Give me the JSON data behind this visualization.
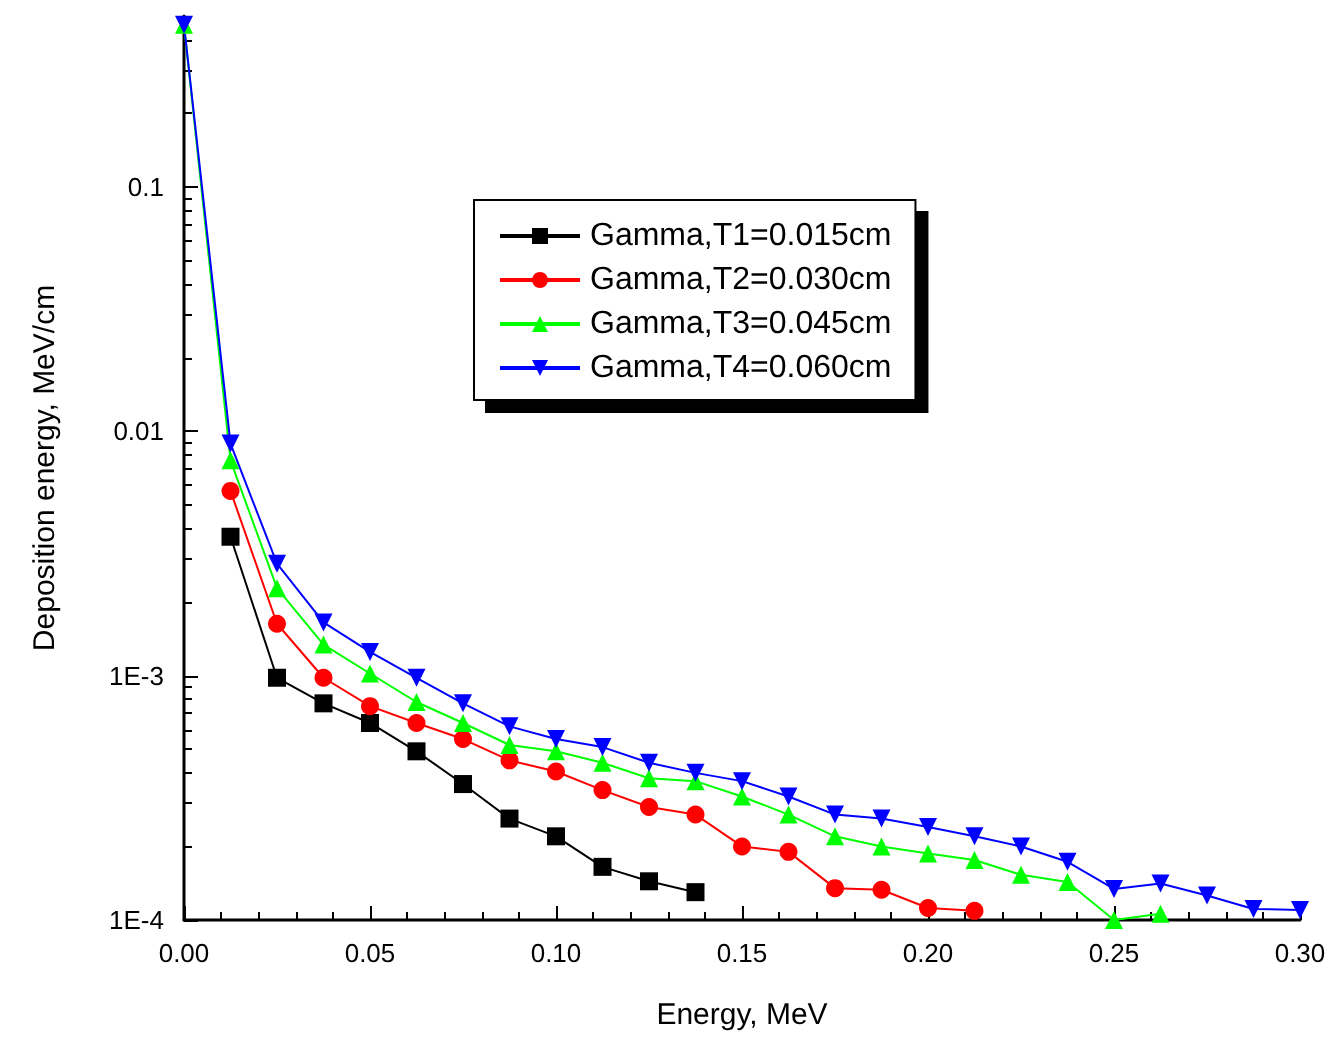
{
  "chart_data": {
    "type": "line",
    "xlabel": "Energy, MeV",
    "ylabel": "Deposition energy, MeV/cm",
    "log": "y",
    "x": [
      0,
      0.0125,
      0.025,
      0.0375,
      0.05,
      0.0625,
      0.075,
      0.0875,
      0.1,
      0.1125,
      0.125,
      0.1375,
      0.15,
      0.1625,
      0.175,
      0.1875,
      0.2,
      0.2125,
      0.225,
      0.2375,
      0.25,
      0.2625,
      0.275,
      0.2875,
      0.3
    ],
    "series": [
      {
        "name": "Gamma,T1=0.015cm",
        "color": "#000000",
        "marker": "square",
        "values": [
          null,
          0.0037,
          0.00098,
          0.00077,
          0.00064,
          0.00049,
          0.00036,
          0.00026,
          0.00022,
          0.000165,
          0.000144,
          0.00013,
          null,
          null,
          null,
          null,
          null,
          null,
          null,
          null,
          null,
          null,
          null,
          null,
          null
        ]
      },
      {
        "name": "Gamma,T2=0.030cm",
        "color": "#ff0000",
        "marker": "circle",
        "values": [
          null,
          0.0057,
          0.00163,
          0.00098,
          0.00075,
          0.00064,
          0.00055,
          0.00045,
          0.000405,
          0.00034,
          0.00029,
          0.00027,
          0.0002,
          0.00019,
          0.000135,
          0.000133,
          0.000112,
          0.000109,
          null,
          null,
          null,
          null,
          null,
          null,
          null
        ]
      },
      {
        "name": "Gamma,T3=0.045cm",
        "color": "#00ff00",
        "marker": "triangle",
        "values": [
          0.46,
          0.0076,
          0.00228,
          0.00134,
          0.00102,
          0.00078,
          0.00064,
          0.00052,
          0.00049,
          0.00044,
          0.00038,
          0.00037,
          0.00032,
          0.00027,
          0.00022,
          0.0002,
          0.000187,
          0.000176,
          0.000153,
          0.000143,
          0.0001,
          0.000106,
          null,
          null,
          null
        ]
      },
      {
        "name": "Gamma,T4=0.060cm",
        "color": "#0000ff",
        "marker": "triangle-down",
        "values": [
          0.46,
          0.0089,
          0.00287,
          0.00165,
          0.00125,
          0.00098,
          0.00077,
          0.00062,
          0.00055,
          0.00051,
          0.00044,
          0.0004,
          0.00037,
          0.00032,
          0.00027,
          0.00026,
          0.00024,
          0.00022,
          0.0002,
          0.000173,
          0.000134,
          0.000141,
          0.000126,
          0.000111,
          0.00011
        ]
      }
    ],
    "xlim": [
      0,
      0.3
    ],
    "xticks": [
      {
        "value": 0,
        "label": "0.00"
      },
      {
        "value": 0.05,
        "label": "0.05"
      },
      {
        "value": 0.1,
        "label": "0.10"
      },
      {
        "value": 0.15,
        "label": "0.15"
      },
      {
        "value": 0.2,
        "label": "0.20"
      },
      {
        "value": 0.25,
        "label": "0.25"
      },
      {
        "value": 0.3,
        "label": "0.30"
      }
    ],
    "ylim": [
      0.0001,
      0.5
    ],
    "yticks": [
      {
        "value": 0.0001,
        "label": "1E-4"
      },
      {
        "value": 0.001,
        "label": "1E-3"
      },
      0.01,
      0.1
    ],
    "grid": false,
    "legend": "top right",
    "line_style": "solid"
  }
}
